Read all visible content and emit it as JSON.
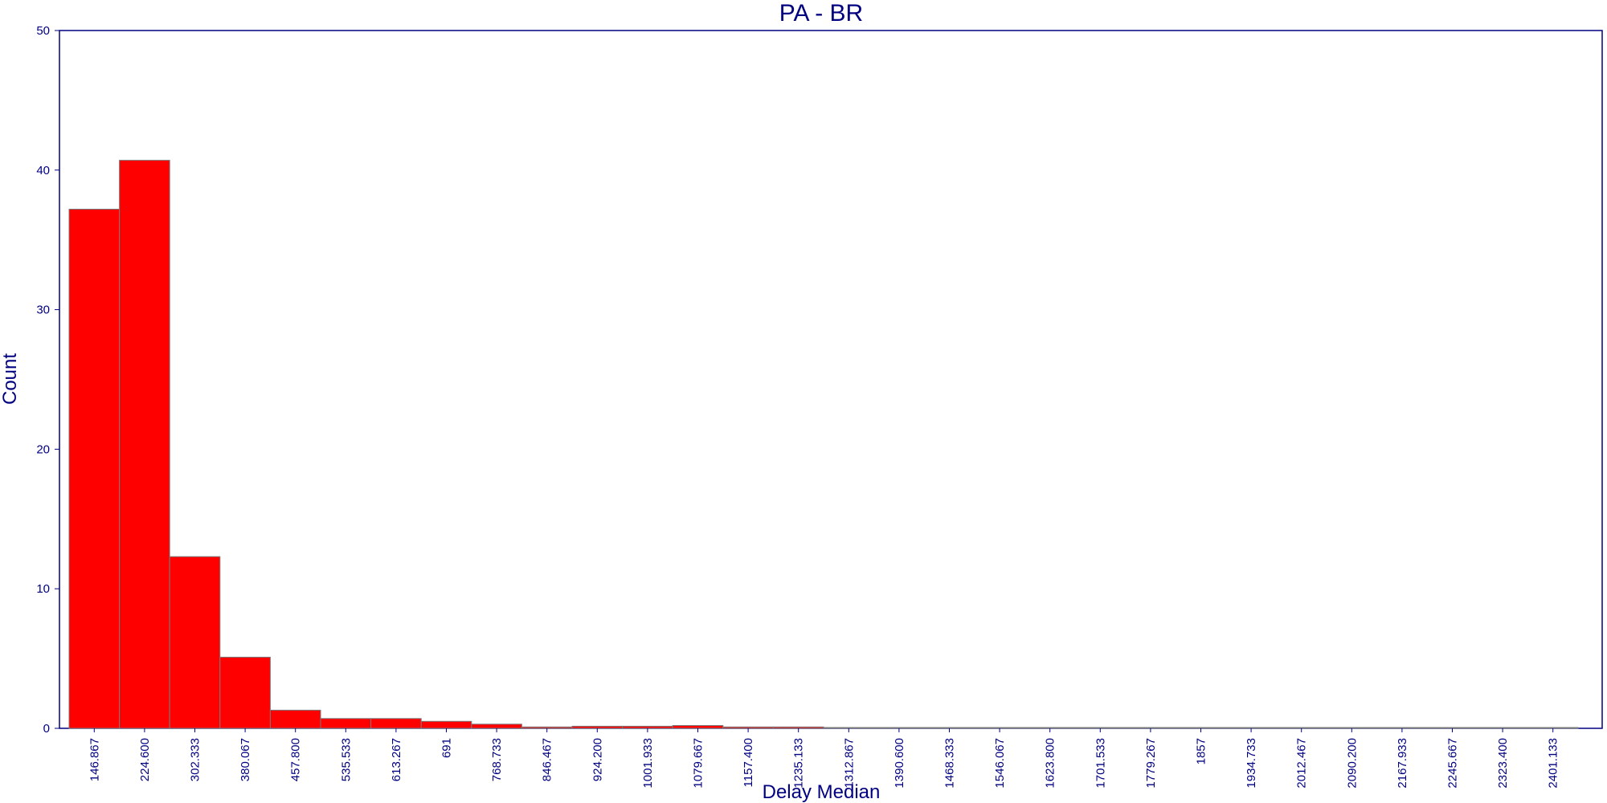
{
  "chart_data": {
    "type": "bar",
    "title": "PA - BR",
    "xlabel": "Delay Median",
    "ylabel": "Count",
    "ylim": [
      0,
      50
    ],
    "yticks": [
      0,
      10,
      20,
      30,
      40,
      50
    ],
    "categories": [
      "146.867",
      "224.600",
      "302.333",
      "380.067",
      "457.800",
      "535.533",
      "613.267",
      "691",
      "768.733",
      "846.467",
      "924.200",
      "1001.933",
      "1079.667",
      "1157.400",
      "1235.133",
      "1312.867",
      "1390.600",
      "1468.333",
      "1546.067",
      "1623.800",
      "1701.533",
      "1779.267",
      "1857",
      "1934.733",
      "2012.467",
      "2090.200",
      "2167.933",
      "2245.667",
      "2323.400",
      "2401.133"
    ],
    "values": [
      37.2,
      40.7,
      12.3,
      5.1,
      1.3,
      0.7,
      0.7,
      0.5,
      0.3,
      0.1,
      0.15,
      0.15,
      0.2,
      0.1,
      0.1,
      0.05,
      0.05,
      0.05,
      0.05,
      0.05,
      0.05,
      0.05,
      0.05,
      0.05,
      0.05,
      0.05,
      0.05,
      0.05,
      0.05,
      0.05
    ],
    "grid": false,
    "colors": {
      "bar": "#ff0000",
      "axis": "#000080",
      "bar_edge": "#7a7a7a"
    }
  }
}
